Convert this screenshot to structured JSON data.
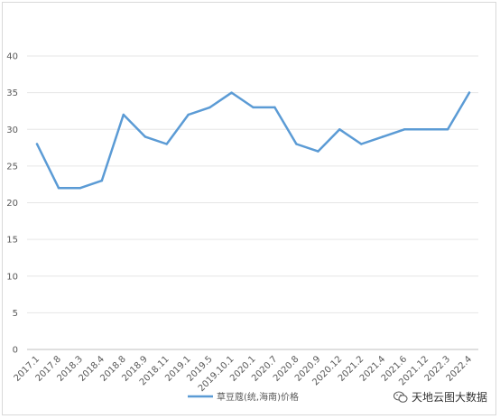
{
  "chart_data": {
    "type": "line",
    "categories": [
      "2017.1",
      "2017.8",
      "2018.3",
      "2018.4",
      "2018.8",
      "2018.9",
      "2018.11",
      "2019.1",
      "2019.5",
      "2019.10.1",
      "2020.1",
      "2020.7",
      "2020.8",
      "2020.9",
      "2020.12",
      "2021.2",
      "2021.4",
      "2021.6",
      "2021.12",
      "2022.3",
      "2022.4"
    ],
    "series": [
      {
        "name": "草豆蔻(统,海南)价格",
        "values": [
          28,
          22,
          22,
          23,
          32,
          29,
          28,
          32,
          33,
          35,
          33,
          33,
          28,
          27,
          30,
          28,
          29,
          30,
          30,
          30,
          35
        ]
      }
    ],
    "ylim": [
      0,
      40
    ],
    "yticks": [
      0,
      5,
      10,
      15,
      20,
      25,
      30,
      35,
      40
    ],
    "grid": true,
    "legend": "bottom",
    "line_color": "#5b9bd5"
  },
  "watermark": {
    "text": "天地云图大数据",
    "icon": "wechat-icon"
  }
}
